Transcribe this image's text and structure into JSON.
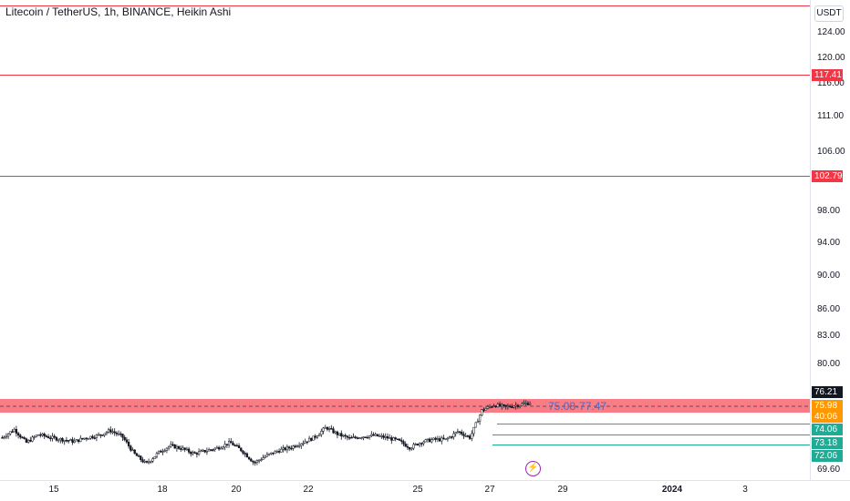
{
  "header": {
    "title": "Litecoin / TetherUS, 1h, BINANCE, Heikin Ashi",
    "currency": "USDT"
  },
  "price_axis": {
    "ticks": [
      "124.00",
      "120.00",
      "116.00",
      "111.00",
      "106.00",
      "98.00",
      "94.00",
      "90.00",
      "86.00",
      "83.00",
      "80.00",
      "69.60"
    ]
  },
  "time_axis": {
    "ticks": [
      {
        "label": "15",
        "bold": false
      },
      {
        "label": "18",
        "bold": false
      },
      {
        "label": "20",
        "bold": false
      },
      {
        "label": "22",
        "bold": false
      },
      {
        "label": "25",
        "bold": false
      },
      {
        "label": "27",
        "bold": false
      },
      {
        "label": "29",
        "bold": false
      },
      {
        "label": "2024",
        "bold": true
      },
      {
        "label": "3",
        "bold": false
      }
    ]
  },
  "horizontal_lines": [
    {
      "price": 117.41,
      "label": "117.41",
      "color": "#f23645"
    },
    {
      "price": 102.79,
      "label": "102.79",
      "color": "#f23645"
    }
  ],
  "zone": {
    "label": "75.08-77.47",
    "low": 75.08,
    "high": 77.47,
    "color": "#f7525f"
  },
  "green_levels": [
    {
      "label": "74.06",
      "color": "#22ab94"
    },
    {
      "label": "73.18",
      "color": "#22ab94"
    },
    {
      "label": "72.06",
      "color": "#22ab94"
    }
  ],
  "price_badges": [
    {
      "label": "76.21",
      "color": "#131722"
    },
    {
      "label": "75.98",
      "color": "#ff9800"
    },
    {
      "label": "40:06",
      "color": "#ff9800"
    }
  ],
  "flash_icon": "⚡",
  "chart_data": {
    "type": "candlestick",
    "title": "Litecoin / TetherUS, 1h, BINANCE, Heikin Ashi",
    "ylabel": "USDT",
    "x_ticks": [
      "15",
      "18",
      "20",
      "22",
      "25",
      "27",
      "29",
      "2024",
      "3"
    ],
    "y_ticks": [
      124.0,
      120.0,
      116.0,
      111.0,
      106.0,
      98.0,
      94.0,
      90.0,
      86.0,
      83.0,
      80.0,
      69.6
    ],
    "ylim": [
      69.0,
      126.0
    ],
    "series": [
      {
        "close_anchors": [
          72.8,
          73.6,
          72.3,
          73.1,
          72.8,
          72.6,
          72.4,
          72.8,
          73.0,
          73.5,
          72.9,
          71.2,
          70.2,
          71.3,
          72.0,
          71.7,
          71.2,
          71.5,
          71.8,
          72.3,
          71.5,
          70.3,
          71.0,
          71.5,
          71.8,
          72.3,
          72.8,
          73.8,
          73.1,
          72.7,
          72.9,
          73.0,
          72.8,
          72.5,
          71.8,
          72.4,
          72.6,
          72.6,
          73.4,
          72.8,
          75.5,
          76.0,
          75.8,
          76.0,
          76.21
        ]
      }
    ],
    "horizontal_levels": [
      117.41,
      102.79,
      74.06,
      73.18,
      72.06
    ],
    "zone": [
      75.08,
      77.47
    ],
    "last_price": 76.21,
    "grid": false
  }
}
